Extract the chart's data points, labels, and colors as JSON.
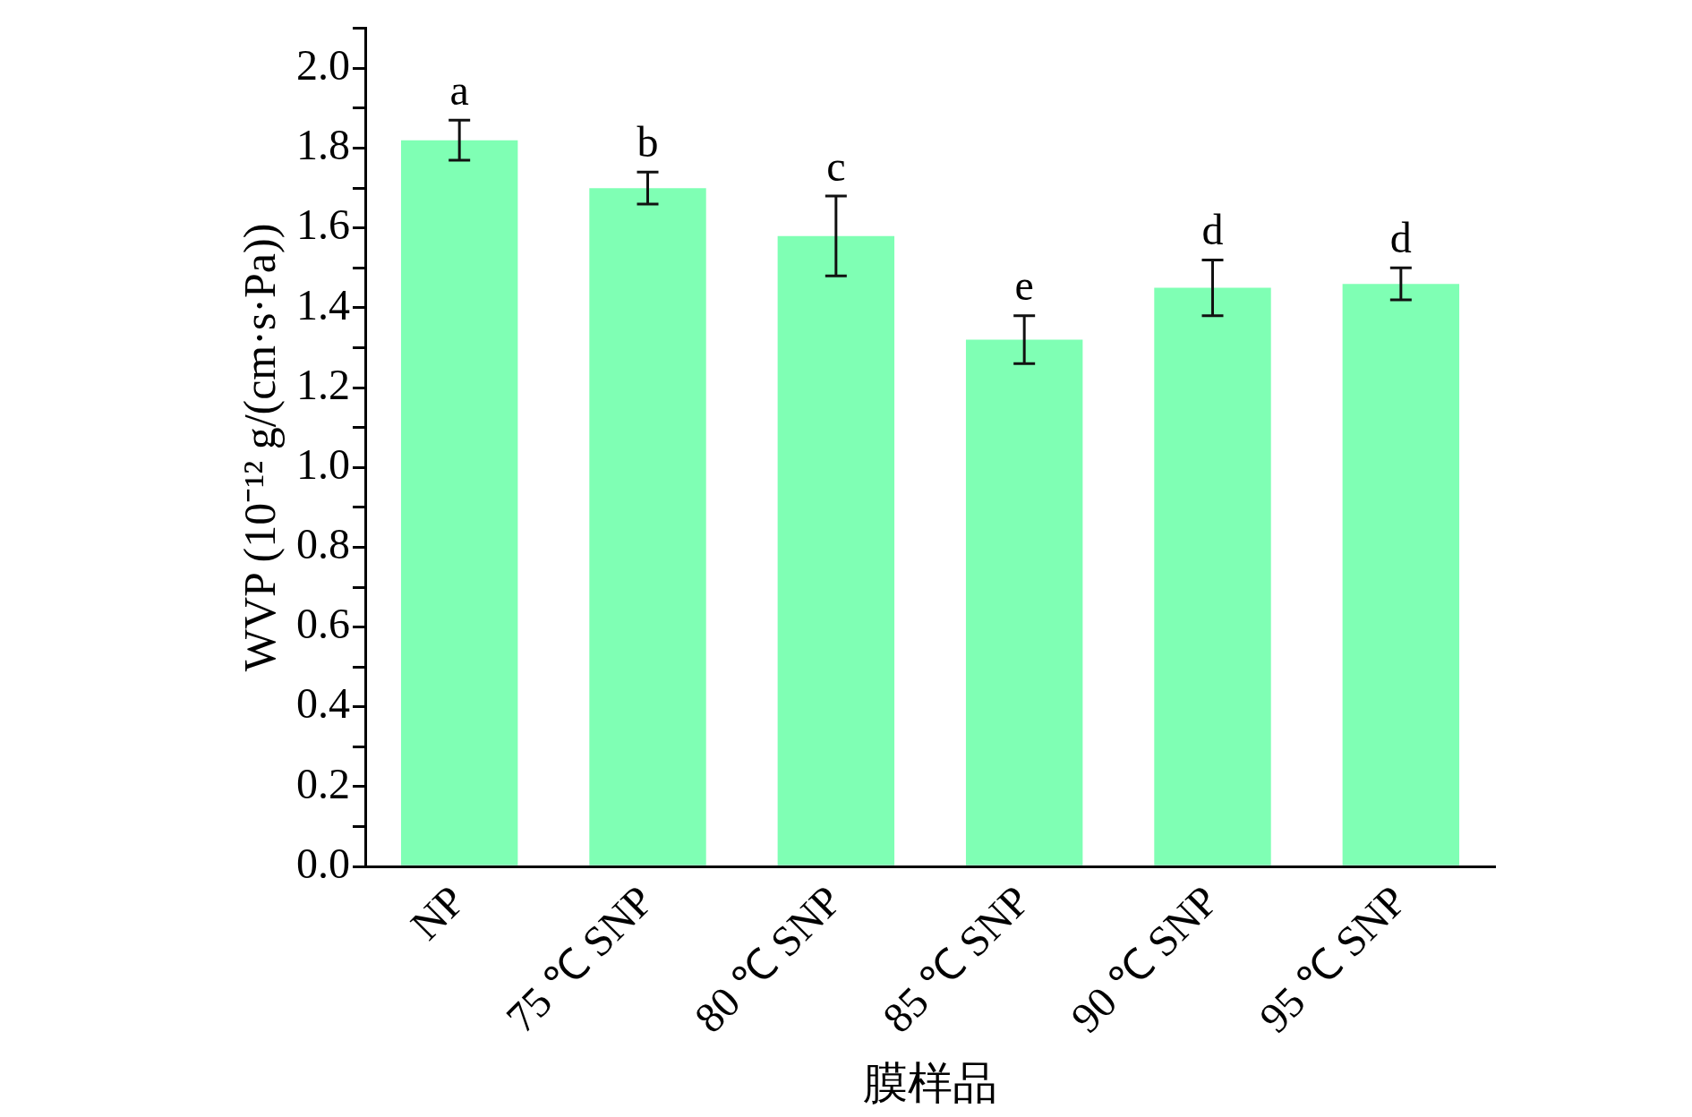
{
  "chart_data": {
    "type": "bar",
    "xlabel": "膜样品",
    "ylabel": "WVP (10⁻¹² g/(cm·s·Pa))",
    "categories": [
      "NP",
      "75 ℃ SNP",
      "80 ℃ SNP",
      "85 ℃ SNP",
      "90 ℃ SNP",
      "95 ℃ SNP"
    ],
    "values": [
      1.82,
      1.7,
      1.58,
      1.32,
      1.45,
      1.46
    ],
    "errors": [
      0.05,
      0.04,
      0.1,
      0.06,
      0.07,
      0.04
    ],
    "color": "#7fffb4",
    "ylim": [
      0,
      2.1
    ],
    "yticks": [
      {
        "value": 0,
        "label": "0.0"
      },
      {
        "value": 0.1,
        "label": null
      },
      {
        "value": 0.2,
        "label": "0.2"
      },
      {
        "value": 0.3,
        "label": null
      },
      {
        "value": 0.4,
        "label": "0.4"
      },
      {
        "value": 0.5,
        "label": null
      },
      {
        "value": 0.6,
        "label": "0.6"
      },
      {
        "value": 0.7,
        "label": null
      },
      {
        "value": 0.8,
        "label": "0.8"
      },
      {
        "value": 0.9,
        "label": null
      },
      {
        "value": 1.0,
        "label": "1.0"
      },
      {
        "value": 1.1,
        "label": null
      },
      {
        "value": 1.2,
        "label": "1.2"
      },
      {
        "value": 1.3,
        "label": null
      },
      {
        "value": 1.4,
        "label": "1.4"
      },
      {
        "value": 1.5,
        "label": null
      },
      {
        "value": 1.6,
        "label": "1.6"
      },
      {
        "value": 1.7,
        "label": null
      },
      {
        "value": 1.8,
        "label": "1.8"
      },
      {
        "value": 1.9,
        "label": null
      },
      {
        "value": 2.0,
        "label": "2.0"
      },
      {
        "value": 2.1,
        "label": null
      }
    ],
    "annotations": [
      {
        "text": "a",
        "x": "NP",
        "y": 1.87
      },
      {
        "text": "b",
        "x": "75 ℃ SNP",
        "y": 1.74
      },
      {
        "text": "c",
        "x": "80 ℃ SNP",
        "y": 1.68
      },
      {
        "text": "e",
        "x": "85 ℃ SNP",
        "y": 1.38
      },
      {
        "text": "d",
        "x": "90 ℃ SNP",
        "y": 1.52
      },
      {
        "text": "d",
        "x": "95 ℃ SNP",
        "y": 1.5
      }
    ],
    "grid": false,
    "legend": false
  }
}
